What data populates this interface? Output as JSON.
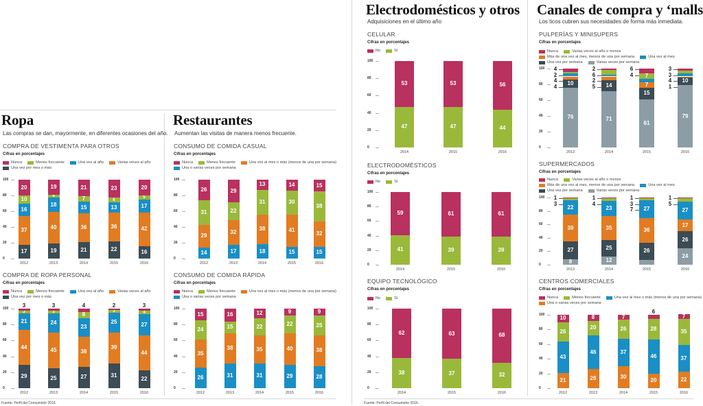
{
  "colors": {
    "magenta": "#b9315f",
    "green": "#9ab93b",
    "blue": "#1a8fc5",
    "orange": "#e27c22",
    "dark": "#3b4c54",
    "gray": "#8d9da5"
  },
  "sections": {
    "ropa": {
      "title": "Ropa",
      "subtitle": "Las compras se dan, mayormente, en diferentes ocasiones del año."
    },
    "restaurantes": {
      "title": "Restaurantes",
      "subtitle": "Aumentan las visitas de manera menos frecuente."
    },
    "electro": {
      "title": "Electrodomésticos y otros",
      "subtitle": "Adquisiciones en el último año"
    },
    "canales": {
      "title": "Canales de compra y ‘malls’",
      "subtitle": "Los ticos cubren sus necesidades de forma más inmediata."
    }
  },
  "sources": [
    "Fuente: Perfil del Consumidor 2016.",
    "Fuente: Perfil del Consumidor 2016."
  ],
  "chart_data": [
    {
      "id": "vestimenta",
      "type": "stacked-bar",
      "title": "COMPRA DE VESTIMENTA PARA OTROS",
      "unit": "Cifras en porcentajes",
      "ylim": [
        0,
        100
      ],
      "yticks": [
        0,
        20,
        40,
        60,
        80,
        100
      ],
      "categories": [
        "2012",
        "2013",
        "2014",
        "2015",
        "2016"
      ],
      "legend": [
        "Nunca",
        "Menos frecuente",
        "Una vez al año",
        "Varias veces al año",
        "Una vez por mes o más"
      ],
      "series": [
        {
          "name": "Una vez por mes o más",
          "color": "dark",
          "values": [
            17,
            19,
            21,
            22,
            16
          ]
        },
        {
          "name": "Varias veces al año",
          "color": "orange",
          "values": [
            37,
            40,
            36,
            36,
            42
          ]
        },
        {
          "name": "Una vez al año",
          "color": "blue",
          "values": [
            16,
            18,
            15,
            13,
            17
          ]
        },
        {
          "name": "Menos frecuente",
          "color": "green",
          "values": [
            10,
            4,
            7,
            6,
            5
          ]
        },
        {
          "name": "Nunca",
          "color": "magenta",
          "values": [
            20,
            19,
            21,
            23,
            20
          ]
        }
      ]
    },
    {
      "id": "personal",
      "type": "stacked-bar",
      "title": "COMPRA DE ROPA PERSONAL",
      "unit": "Cifras en porcentajes",
      "ylim": [
        0,
        100
      ],
      "yticks": [
        0,
        20,
        40,
        60,
        80,
        100
      ],
      "categories": [
        "2012",
        "2013",
        "2014",
        "2015",
        "2016"
      ],
      "legend": [
        "Nunca",
        "Menos frecuente",
        "Una vez al año",
        "Varias veces al año",
        "Una vez por mes o más"
      ],
      "series": [
        {
          "name": "Una vez por mes o más",
          "color": "dark",
          "values": [
            29,
            25,
            27,
            31,
            22
          ]
        },
        {
          "name": "Varias veces al año",
          "color": "orange",
          "values": [
            44,
            45,
            38,
            39,
            44
          ]
        },
        {
          "name": "Una vez al año",
          "color": "blue",
          "values": [
            21,
            24,
            23,
            25,
            27
          ]
        },
        {
          "name": "Menos frecuente",
          "color": "green",
          "values": [
            3,
            3,
            8,
            3,
            4
          ]
        },
        {
          "name": "Nunca",
          "color": "magenta",
          "values": [
            3,
            3,
            4,
            2,
            3
          ]
        }
      ]
    },
    {
      "id": "casual",
      "type": "stacked-bar",
      "title": "CONSUMO DE COMIDA CASUAL",
      "unit": "Cifras en porcentajes",
      "ylim": [
        0,
        100
      ],
      "yticks": [
        0,
        20,
        40,
        60,
        80,
        100
      ],
      "categories": [
        "2012",
        "2013",
        "2014",
        "2015",
        "2016"
      ],
      "legend": [
        "Nunca",
        "Menos frecuente",
        "Una vez al mes o más (menos de una por semana)",
        "Una o varias veces por semana"
      ],
      "series": [
        {
          "name": "Una o varias veces por semana",
          "color": "blue",
          "values": [
            14,
            17,
            18,
            15,
            15
          ]
        },
        {
          "name": "Una vez al mes o más (menos de una por semana)",
          "color": "orange",
          "values": [
            29,
            32,
            38,
            41,
            32
          ]
        },
        {
          "name": "Menos frecuente",
          "color": "green",
          "values": [
            31,
            22,
            31,
            30,
            38
          ]
        },
        {
          "name": "Nunca",
          "color": "magenta",
          "values": [
            26,
            29,
            13,
            14,
            15
          ]
        }
      ]
    },
    {
      "id": "rapida",
      "type": "stacked-bar",
      "title": "CONSUMO DE COMIDA RÁPIDA",
      "unit": "Cifras en porcentajes",
      "ylim": [
        0,
        100
      ],
      "yticks": [
        0,
        20,
        40,
        60,
        80,
        100
      ],
      "categories": [
        "2012",
        "2013",
        "2014",
        "2015",
        "2016"
      ],
      "legend": [
        "Nunca",
        "Menos frecuente",
        "Una vez al mes o más (menos de una por semana)",
        "Una o varias veces por semana"
      ],
      "series": [
        {
          "name": "Una o varias veces por semana",
          "color": "blue",
          "values": [
            26,
            31,
            31,
            29,
            28
          ]
        },
        {
          "name": "Una vez al mes o más (menos de una por semana)",
          "color": "orange",
          "values": [
            35,
            38,
            35,
            40,
            38
          ]
        },
        {
          "name": "Menos frecuente",
          "color": "green",
          "values": [
            24,
            15,
            22,
            22,
            25
          ]
        },
        {
          "name": "Nunca",
          "color": "magenta",
          "values": [
            15,
            16,
            12,
            9,
            9
          ]
        }
      ]
    },
    {
      "id": "celular",
      "type": "stacked-bar",
      "title": "CELULAR",
      "unit": "Cifras en porcentajes",
      "ylim": [
        0,
        100
      ],
      "yticks": [
        0,
        20,
        40,
        60,
        80,
        100
      ],
      "categories": [
        "2014",
        "2015",
        "2016"
      ],
      "legend": [
        "No",
        "Sí"
      ],
      "series": [
        {
          "name": "Sí",
          "color": "green",
          "values": [
            47,
            47,
            44
          ]
        },
        {
          "name": "No",
          "color": "magenta",
          "values": [
            53,
            53,
            56
          ]
        }
      ]
    },
    {
      "id": "electrodomesticos",
      "type": "stacked-bar",
      "title": "ELECTRODOMÉSTICOS",
      "unit": "Cifras en porcentajes",
      "ylim": [
        0,
        100
      ],
      "yticks": [
        0,
        20,
        40,
        60,
        80,
        100
      ],
      "categories": [
        "2014",
        "2015",
        "2016"
      ],
      "legend": [
        "No",
        "Sí"
      ],
      "series": [
        {
          "name": "Sí",
          "color": "green",
          "values": [
            41,
            39,
            39
          ]
        },
        {
          "name": "No",
          "color": "magenta",
          "values": [
            59,
            61,
            61
          ]
        }
      ]
    },
    {
      "id": "equipo",
      "type": "stacked-bar",
      "title": "EQUIPO TECNOLÓGICO",
      "unit": "Cifras en porcentajes",
      "ylim": [
        0,
        100
      ],
      "yticks": [
        0,
        20,
        40,
        60,
        80,
        100
      ],
      "categories": [
        "2014",
        "2015",
        "2016"
      ],
      "legend": [
        "No",
        "Sí"
      ],
      "series": [
        {
          "name": "Sí",
          "color": "green",
          "values": [
            38,
            37,
            32
          ]
        },
        {
          "name": "No",
          "color": "magenta",
          "values": [
            62,
            63,
            68
          ]
        }
      ]
    },
    {
      "id": "pulperias",
      "type": "stacked-bar",
      "title": "PULPERÍAS Y MINISUPERS",
      "unit": "Cifras en porcentajes",
      "ylim": [
        0,
        100
      ],
      "yticks": [
        0,
        20,
        40,
        60,
        80,
        100
      ],
      "categories": [
        "2013",
        "2014",
        "2015",
        "2016"
      ],
      "legend": [
        "Nunca",
        "Varias veces al año o menos",
        "Más de una vez al mes, menos de una por semana",
        "Una vez al mes",
        "Una vez por semana",
        "Varias veces por semana"
      ],
      "series": [
        {
          "name": "Varias veces por semana",
          "color": "gray",
          "values": [
            76,
            71,
            61,
            79
          ]
        },
        {
          "name": "Una vez por semana",
          "color": "dark",
          "values": [
            10,
            14,
            15,
            10
          ]
        },
        {
          "name": "Más de una vez al mes, menos de una por semana",
          "color": "orange",
          "values": [
            4,
            5,
            7,
            1
          ]
        },
        {
          "name": "Una vez al mes",
          "color": "blue",
          "values": [
            4,
            2,
            4,
            4
          ]
        },
        {
          "name": "Varias veces al año o menos",
          "color": "green",
          "values": [
            2,
            6,
            7,
            3
          ]
        },
        {
          "name": "Nunca",
          "color": "magenta",
          "values": [
            4,
            2,
            6,
            3
          ]
        }
      ]
    },
    {
      "id": "supermercados",
      "type": "stacked-bar",
      "title": "SUPERMERCADOS",
      "unit": "Cifras en porcentajes",
      "ylim": [
        0,
        100
      ],
      "yticks": [
        0,
        20,
        40,
        60,
        80,
        100
      ],
      "categories": [
        "2013",
        "2014",
        "2015",
        "2016"
      ],
      "legend": [
        "Nunca",
        "Varias veces al año o menos",
        "Más de una vez al mes, menos de una por semana",
        "Una vez al mes",
        "Una vez por semana",
        "Varias veces por semana"
      ],
      "series": [
        {
          "name": "Varias veces por semana",
          "color": "gray",
          "values": [
            8,
            12,
            7,
            24
          ]
        },
        {
          "name": "Una vez por semana",
          "color": "dark",
          "values": [
            27,
            25,
            26,
            26
          ]
        },
        {
          "name": "Más de una vez al mes, menos de una por semana",
          "color": "orange",
          "values": [
            39,
            35,
            36,
            17
          ]
        },
        {
          "name": "Una vez al mes",
          "color": "blue",
          "values": [
            22,
            23,
            27,
            27
          ]
        },
        {
          "name": "Varias veces al año o menos",
          "color": "green",
          "values": [
            3,
            4,
            3,
            5
          ]
        },
        {
          "name": "Nunca",
          "color": "magenta",
          "values": [
            1,
            1,
            1,
            1
          ]
        }
      ]
    },
    {
      "id": "centros",
      "type": "stacked-bar",
      "title": "CENTROS COMERCIALES",
      "unit": "Cifras en porcentajes",
      "ylim": [
        0,
        100
      ],
      "yticks": [
        0,
        20,
        40,
        60,
        80,
        100
      ],
      "categories": [
        "2012",
        "2013",
        "2014",
        "2015",
        "2016"
      ],
      "legend": [
        "Nunca",
        "Menos frecuente",
        "Una vez al mes o más (menos de una por semana)",
        "Una o varias veces por semana"
      ],
      "series": [
        {
          "name": "Una o varias veces por semana",
          "color": "orange",
          "values": [
            21,
            26,
            30,
            20,
            22
          ]
        },
        {
          "name": "Una vez al mes o más (menos de una por semana)",
          "color": "blue",
          "values": [
            43,
            46,
            37,
            46,
            37
          ]
        },
        {
          "name": "Menos frecuente",
          "color": "green",
          "values": [
            26,
            20,
            26,
            28,
            35
          ]
        },
        {
          "name": "Nunca",
          "color": "magenta",
          "values": [
            10,
            8,
            7,
            6,
            7
          ]
        }
      ]
    }
  ]
}
